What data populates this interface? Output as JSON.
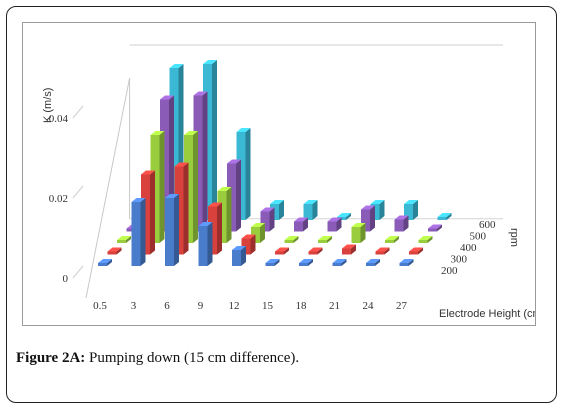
{
  "figure": {
    "label": "Figure 2A:",
    "text": "Pumping down (15 cm difference)."
  },
  "chart_data": {
    "type": "bar",
    "subtype": "3d-column",
    "title": "",
    "xlabel": "Electrode Height (cm)",
    "ylabel": "K (m/s)",
    "zlabel": "rpm",
    "categories": [
      "0.5",
      "3",
      "6",
      "9",
      "12",
      "15",
      "18",
      "21",
      "24",
      "27"
    ],
    "ytick_labels": [
      "0",
      "0.02",
      "0.04"
    ],
    "ylim": [
      0,
      0.05
    ],
    "grid": false,
    "legend": "none",
    "series": [
      {
        "name": "200",
        "color": "#4a7ccc",
        "values": [
          0.0005,
          0.016,
          0.017,
          0.01,
          0.004,
          0.0005,
          0.0005,
          0.0005,
          0.0005,
          0.0005
        ]
      },
      {
        "name": "300",
        "color": "#d9413c",
        "values": [
          0.0005,
          0.02,
          0.022,
          0.012,
          0.004,
          0.0005,
          0.0005,
          0.0015,
          0.0005,
          0.0005
        ]
      },
      {
        "name": "400",
        "color": "#9acd3e",
        "values": [
          0.0005,
          0.027,
          0.027,
          0.013,
          0.004,
          0.0005,
          0.0005,
          0.004,
          0.0005,
          0.0005
        ]
      },
      {
        "name": "500",
        "color": "#8a5cb8",
        "values": [
          0.0005,
          0.033,
          0.034,
          0.017,
          0.005,
          0.0025,
          0.0025,
          0.0055,
          0.003,
          0.0005
        ]
      },
      {
        "name": "600",
        "color": "#3bb8d4",
        "values": [
          0.0005,
          0.038,
          0.039,
          0.022,
          0.004,
          0.004,
          0.0005,
          0.004,
          0.004,
          0.0005
        ]
      }
    ]
  }
}
